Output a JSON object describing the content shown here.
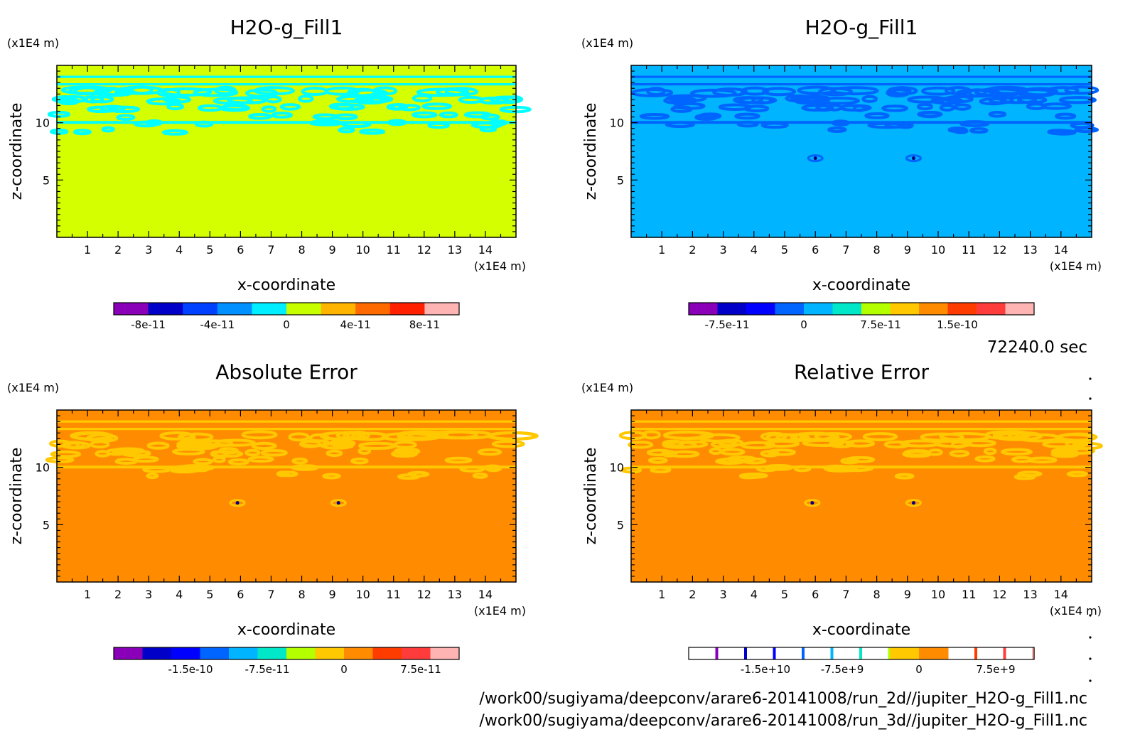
{
  "time_label": "72240.0 sec",
  "footer": {
    "line1": "/work00/sugiyama/deepconv/arare6-20141008/run_2d//jupiter_H2O-g_Fill1.nc",
    "line2": "/work00/sugiyama/deepconv/arare6-20141008/run_3d//jupiter_H2O-g_Fill1.nc"
  },
  "chart_data": [
    {
      "type": "heatmap",
      "title": "H2O-g_Fill1",
      "xlabel": "x-coordinate",
      "ylabel": "z-coordinate",
      "x_unit": "(x1E4 m)",
      "y_unit": "(x1E4 m)",
      "xlim": [
        0,
        15
      ],
      "ylim": [
        0,
        15
      ],
      "xticks": [
        1,
        2,
        3,
        4,
        5,
        6,
        7,
        8,
        9,
        10,
        11,
        12,
        13,
        14
      ],
      "yticks": [
        5,
        10
      ],
      "background_color": "#d4ff00",
      "pattern_color": "#00ffff",
      "hotspots": [],
      "colorbar": {
        "colors": [
          "#8a00b8",
          "#0000c8",
          "#0040ff",
          "#0090ff",
          "#00eeff",
          "#c8ff00",
          "#ffb400",
          "#ff6a00",
          "#ff2000",
          "#ffb4b4"
        ],
        "tick_labels": [
          "-8e-11",
          "-4e-11",
          "0",
          "4e-11",
          "8e-11"
        ],
        "tick_values": [
          -8e-11,
          -4e-11,
          0,
          4e-11,
          8e-11
        ],
        "range": [
          -1e-10,
          1e-10
        ],
        "style": "filled"
      }
    },
    {
      "type": "heatmap",
      "title": "H2O-g_Fill1",
      "xlabel": "x-coordinate",
      "ylabel": "z-coordinate",
      "x_unit": "(x1E4 m)",
      "y_unit": "(x1E4 m)",
      "xlim": [
        0,
        15
      ],
      "ylim": [
        0,
        15
      ],
      "xticks": [
        1,
        2,
        3,
        4,
        5,
        6,
        7,
        8,
        9,
        10,
        11,
        12,
        13,
        14
      ],
      "yticks": [
        5,
        10
      ],
      "background_color": "#00b4ff",
      "pattern_color": "#0064ff",
      "hotspots": [
        [
          6.0,
          6.9
        ],
        [
          9.2,
          6.9
        ]
      ],
      "colorbar": {
        "colors": [
          "#8a00b8",
          "#0000c8",
          "#0000ff",
          "#0064ff",
          "#00b4ff",
          "#00e8c8",
          "#b4ff00",
          "#ffc800",
          "#ff8c00",
          "#ff3c00",
          "#ff3c3c",
          "#ffb4b4"
        ],
        "tick_labels": [
          "-7.5e-11",
          "0",
          "7.5e-11",
          "1.5e-10"
        ],
        "tick_values": [
          -7.5e-11,
          0,
          7.5e-11,
          1.5e-10
        ],
        "range": [
          -1.125e-10,
          2.25e-10
        ],
        "style": "filled"
      }
    },
    {
      "type": "heatmap",
      "title": "Absolute Error",
      "xlabel": "x-coordinate",
      "ylabel": "z-coordinate",
      "x_unit": "(x1E4 m)",
      "y_unit": "(x1E4 m)",
      "xlim": [
        0,
        15
      ],
      "ylim": [
        0,
        15
      ],
      "xticks": [
        1,
        2,
        3,
        4,
        5,
        6,
        7,
        8,
        9,
        10,
        11,
        12,
        13,
        14
      ],
      "yticks": [
        5,
        10
      ],
      "background_color": "#ff8c00",
      "pattern_color": "#ffc800",
      "hotspots": [
        [
          5.9,
          6.9
        ],
        [
          9.2,
          6.9
        ]
      ],
      "colorbar": {
        "colors": [
          "#8a00b8",
          "#0000c8",
          "#0000ff",
          "#0064ff",
          "#00b4ff",
          "#00e8c8",
          "#b4ff00",
          "#ffc800",
          "#ff8c00",
          "#ff3c00",
          "#ff3c3c",
          "#ffb4b4"
        ],
        "tick_labels": [
          "-1.5e-10",
          "-7.5e-11",
          "0",
          "7.5e-11"
        ],
        "tick_values": [
          -1.5e-10,
          -7.5e-11,
          0,
          7.5e-11
        ],
        "range": [
          -2.25e-10,
          1.125e-10
        ],
        "style": "filled"
      }
    },
    {
      "type": "heatmap",
      "title": "Relative Error",
      "xlabel": "x-coordinate",
      "ylabel": "z-coordinate",
      "x_unit": "(x1E4 m)",
      "y_unit": "(x1E4 m)",
      "xlim": [
        0,
        15
      ],
      "ylim": [
        0,
        15
      ],
      "xticks": [
        1,
        2,
        3,
        4,
        5,
        6,
        7,
        8,
        9,
        10,
        11,
        12,
        13,
        14
      ],
      "yticks": [
        5,
        10
      ],
      "background_color": "#ff8c00",
      "pattern_color": "#ffc800",
      "hotspots": [
        [
          5.9,
          6.9
        ],
        [
          9.2,
          6.9
        ]
      ],
      "colorbar": {
        "colors": [
          "#8a00b8",
          "#0000c8",
          "#0000ff",
          "#0064ff",
          "#00b4ff",
          "#00e8c8",
          "#b4ff00",
          "#ffc800",
          "#ff8c00",
          "#ff3c00",
          "#ff3c3c",
          "#ffb4b4"
        ],
        "tick_labels": [
          "-1.5e+10",
          "-7.5e+9",
          "0",
          "7.5e+9"
        ],
        "tick_values": [
          -15000000000.0,
          -7500000000.0,
          0,
          7500000000.0
        ],
        "range": [
          -22500000000.0,
          11250000000.0
        ],
        "style": "sparse"
      }
    }
  ]
}
